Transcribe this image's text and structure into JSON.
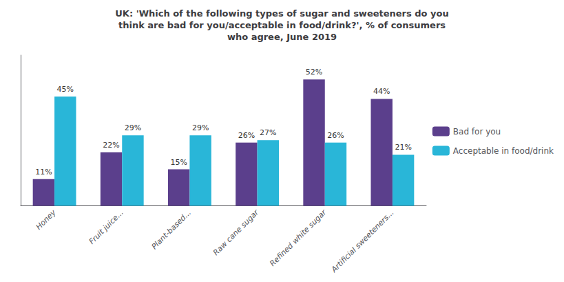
{
  "chart_data": {
    "type": "bar",
    "title": "UK: 'Which of the following types of sugar and sweeteners do you\nthink are bad for you/acceptable in food/drink?', % of consumers\nwho agree, June 2019",
    "categories": [
      "Honey",
      "Fruit juice...",
      "Plant-based...",
      "Raw cane sugar",
      "Refined white sugar",
      "Artificial sweeteners..."
    ],
    "series": [
      {
        "name": "Bad for you",
        "color": "#5b3f8c",
        "values": [
          11,
          22,
          15,
          26,
          52,
          44
        ],
        "value_labels": [
          "11%",
          "22%",
          "15%",
          "26%",
          "52%",
          "44%"
        ]
      },
      {
        "name": "Acceptable in food/drink",
        "color": "#29b6d8",
        "values": [
          45,
          29,
          29,
          27,
          26,
          21
        ],
        "value_labels": [
          "45%",
          "29%",
          "29%",
          "27%",
          "26%",
          "21%"
        ]
      }
    ],
    "ylim": [
      0,
      62
    ],
    "grid": false,
    "legend": "right",
    "data_labels": true,
    "tick_labels": "x"
  }
}
